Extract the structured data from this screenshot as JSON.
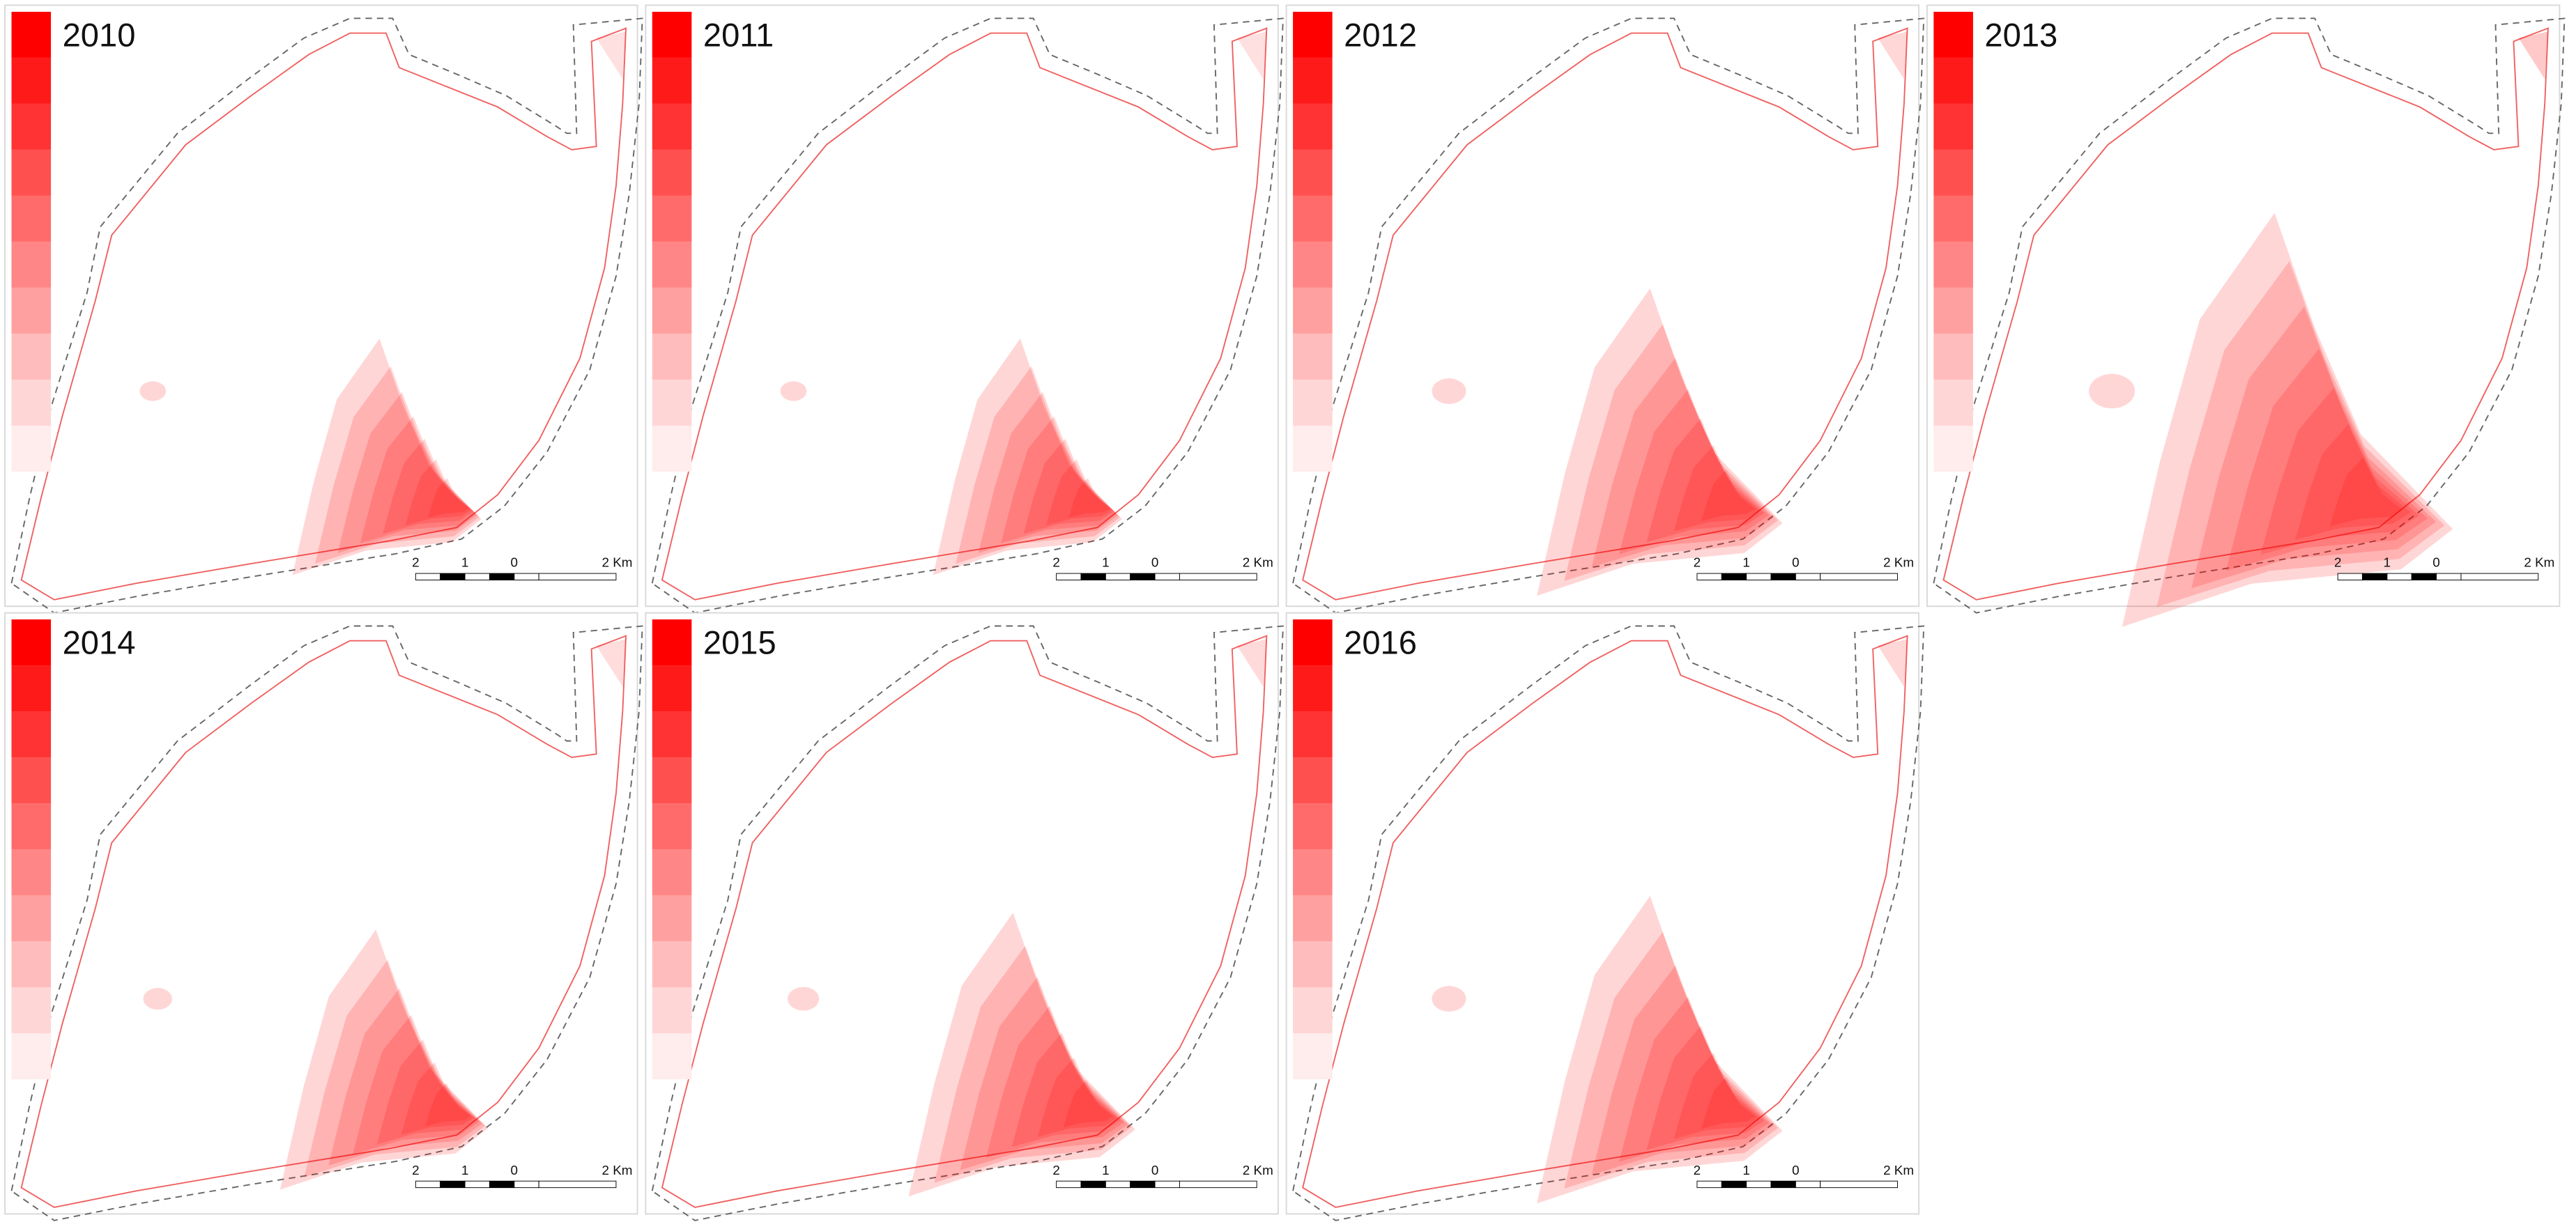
{
  "panels": [
    {
      "year": "2010",
      "scale_labels": [
        "2",
        "1",
        "0",
        "2 Km"
      ]
    },
    {
      "year": "2011",
      "scale_labels": [
        "2",
        "1",
        "0",
        "2 Km"
      ]
    },
    {
      "year": "2012",
      "scale_labels": [
        "2",
        "1",
        "0",
        "2 Km"
      ]
    },
    {
      "year": "2013",
      "scale_labels": [
        "2",
        "1",
        "0",
        "2 Km"
      ]
    },
    {
      "year": "2014",
      "scale_labels": [
        "2",
        "1",
        "0",
        "2 Km"
      ]
    },
    {
      "year": "2015",
      "scale_labels": [
        "2",
        "1",
        "0",
        "2 Km"
      ]
    },
    {
      "year": "2016",
      "scale_labels": [
        "2",
        "1",
        "0",
        "2 Km"
      ]
    }
  ]
}
